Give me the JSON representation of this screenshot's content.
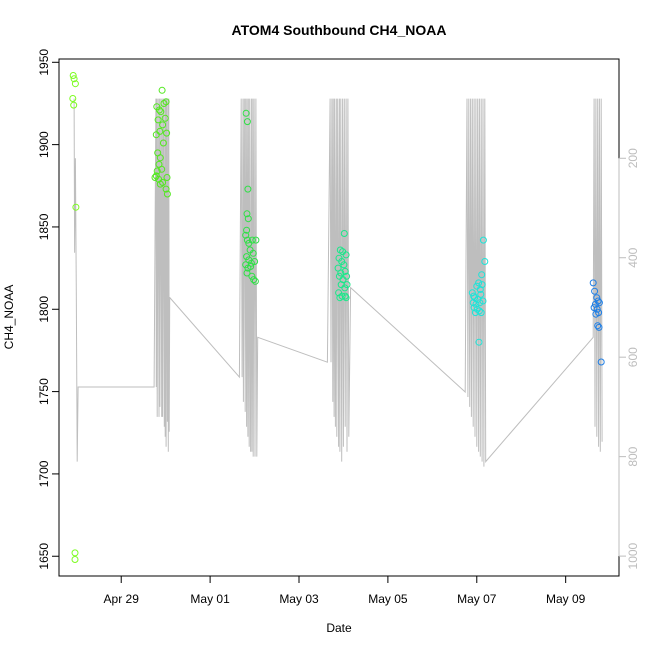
{
  "chart_data": {
    "type": "scatter",
    "title": "ATOM4 Southbound CH4_NOAA",
    "xlabel": "Date",
    "ylabel": "CH4_NOAA",
    "x_ticks": [
      "Apr 29",
      "May 01",
      "May 03",
      "May 05",
      "May 07",
      "May 09"
    ],
    "x_tick_days": [
      0.0,
      2.0,
      4.0,
      6.0,
      8.0,
      10.0
    ],
    "xlim_days": [
      -1.4,
      11.2
    ],
    "ylim": [
      1638,
      1952
    ],
    "y_ticks": [
      1650,
      1700,
      1750,
      1800,
      1850,
      1900,
      1950
    ],
    "y2_ticks": [
      200,
      400,
      600,
      800,
      1000
    ],
    "y2_range": [
      0.4,
      1040
    ],
    "colors": {
      "altitude_line": "#bebebe",
      "axis": "#000000",
      "right_axis": "#bdbdbd"
    },
    "series": [
      {
        "type": "scatter",
        "points": [
          {
            "x": -1.08,
            "y": 1942,
            "c": "#7cfc20"
          },
          {
            "x": -1.06,
            "y": 1940,
            "c": "#7cfc20"
          },
          {
            "x": -1.03,
            "y": 1937,
            "c": "#7cfc20"
          },
          {
            "x": -1.09,
            "y": 1928,
            "c": "#7cfc20"
          },
          {
            "x": -1.07,
            "y": 1924,
            "c": "#7cfc20"
          },
          {
            "x": -1.02,
            "y": 1862,
            "c": "#7cfc20"
          },
          {
            "x": -1.04,
            "y": 1652,
            "c": "#7cfc20"
          },
          {
            "x": -1.04,
            "y": 1648,
            "c": "#7cfc20"
          },
          {
            "x": 0.8,
            "y": 1923,
            "c": "#52e81f"
          },
          {
            "x": 0.86,
            "y": 1921,
            "c": "#52e81f"
          },
          {
            "x": 0.92,
            "y": 1933,
            "c": "#52e81f"
          },
          {
            "x": 0.96,
            "y": 1925,
            "c": "#52e81f"
          },
          {
            "x": 1.01,
            "y": 1926,
            "c": "#52e81f"
          },
          {
            "x": 0.83,
            "y": 1915,
            "c": "#52e81f"
          },
          {
            "x": 0.89,
            "y": 1920,
            "c": "#52e81f"
          },
          {
            "x": 0.93,
            "y": 1912,
            "c": "#52e81f"
          },
          {
            "x": 0.99,
            "y": 1916,
            "c": "#52e81f"
          },
          {
            "x": 0.79,
            "y": 1906,
            "c": "#52e81f"
          },
          {
            "x": 0.87,
            "y": 1908,
            "c": "#52e81f"
          },
          {
            "x": 0.95,
            "y": 1901,
            "c": "#52e81f"
          },
          {
            "x": 1.02,
            "y": 1907,
            "c": "#52e81f"
          },
          {
            "x": 0.82,
            "y": 1895,
            "c": "#52e81f"
          },
          {
            "x": 0.88,
            "y": 1892,
            "c": "#52e81f"
          },
          {
            "x": 0.85,
            "y": 1888,
            "c": "#52e81f"
          },
          {
            "x": 0.91,
            "y": 1885,
            "c": "#52e81f"
          },
          {
            "x": 0.79,
            "y": 1881,
            "c": "#52e81f"
          },
          {
            "x": 0.84,
            "y": 1879,
            "c": "#52e81f"
          },
          {
            "x": 0.88,
            "y": 1876,
            "c": "#52e81f"
          },
          {
            "x": 0.93,
            "y": 1877,
            "c": "#52e81f"
          },
          {
            "x": 1.03,
            "y": 1880,
            "c": "#52e81f"
          },
          {
            "x": 1.01,
            "y": 1873,
            "c": "#52e81f"
          },
          {
            "x": 1.04,
            "y": 1870,
            "c": "#52e81f"
          },
          {
            "x": 0.76,
            "y": 1880,
            "c": "#52e81f"
          },
          {
            "x": 0.81,
            "y": 1884,
            "c": "#52e81f"
          },
          {
            "x": 2.81,
            "y": 1919,
            "c": "#2fe046"
          },
          {
            "x": 2.84,
            "y": 1914,
            "c": "#2fe046"
          },
          {
            "x": 2.85,
            "y": 1873,
            "c": "#2fe046"
          },
          {
            "x": 2.83,
            "y": 1858,
            "c": "#2fe046"
          },
          {
            "x": 2.86,
            "y": 1855,
            "c": "#2fe046"
          },
          {
            "x": 2.82,
            "y": 1848,
            "c": "#2fe046"
          },
          {
            "x": 2.8,
            "y": 1845,
            "c": "#2fe046"
          },
          {
            "x": 2.84,
            "y": 1842,
            "c": "#2fe046"
          },
          {
            "x": 2.87,
            "y": 1840,
            "c": "#2fe046"
          },
          {
            "x": 2.95,
            "y": 1842,
            "c": "#2fe046"
          },
          {
            "x": 3.03,
            "y": 1842,
            "c": "#2fe046"
          },
          {
            "x": 2.9,
            "y": 1836,
            "c": "#2fe046"
          },
          {
            "x": 2.97,
            "y": 1834,
            "c": "#2fe046"
          },
          {
            "x": 2.82,
            "y": 1832,
            "c": "#2fe046"
          },
          {
            "x": 2.87,
            "y": 1830,
            "c": "#2fe046"
          },
          {
            "x": 2.93,
            "y": 1828,
            "c": "#2fe046"
          },
          {
            "x": 3.0,
            "y": 1829,
            "c": "#2fe046"
          },
          {
            "x": 2.8,
            "y": 1827,
            "c": "#2fe046"
          },
          {
            "x": 2.85,
            "y": 1825,
            "c": "#2fe046"
          },
          {
            "x": 2.91,
            "y": 1826,
            "c": "#2fe046"
          },
          {
            "x": 2.83,
            "y": 1822,
            "c": "#2fe046"
          },
          {
            "x": 2.94,
            "y": 1820,
            "c": "#2fe046"
          },
          {
            "x": 2.98,
            "y": 1818,
            "c": "#2fe046"
          },
          {
            "x": 3.02,
            "y": 1817,
            "c": "#2fe046"
          },
          {
            "x": 4.93,
            "y": 1836,
            "c": "#1ae88a"
          },
          {
            "x": 4.98,
            "y": 1835,
            "c": "#1ae88a"
          },
          {
            "x": 5.02,
            "y": 1846,
            "c": "#1ae88a"
          },
          {
            "x": 5.06,
            "y": 1833,
            "c": "#1ae88a"
          },
          {
            "x": 4.9,
            "y": 1831,
            "c": "#1ae88a"
          },
          {
            "x": 4.96,
            "y": 1829,
            "c": "#1ae88a"
          },
          {
            "x": 5.01,
            "y": 1827,
            "c": "#1ae88a"
          },
          {
            "x": 4.88,
            "y": 1825,
            "c": "#1ae88a"
          },
          {
            "x": 4.94,
            "y": 1822,
            "c": "#1ae88a"
          },
          {
            "x": 5.04,
            "y": 1823,
            "c": "#1ae88a"
          },
          {
            "x": 4.91,
            "y": 1820,
            "c": "#1ae88a"
          },
          {
            "x": 4.99,
            "y": 1818,
            "c": "#1ae88a"
          },
          {
            "x": 5.07,
            "y": 1820,
            "c": "#1ae88a"
          },
          {
            "x": 4.95,
            "y": 1815,
            "c": "#1ae88a"
          },
          {
            "x": 5.03,
            "y": 1813,
            "c": "#1ae88a"
          },
          {
            "x": 5.08,
            "y": 1815,
            "c": "#1ae88a"
          },
          {
            "x": 4.89,
            "y": 1810,
            "c": "#1ae88a"
          },
          {
            "x": 4.97,
            "y": 1808,
            "c": "#1ae88a"
          },
          {
            "x": 5.04,
            "y": 1808,
            "c": "#1ae88a"
          },
          {
            "x": 4.92,
            "y": 1807,
            "c": "#1ae88a"
          },
          {
            "x": 5.06,
            "y": 1807,
            "c": "#1ae88a"
          },
          {
            "x": 7.9,
            "y": 1810,
            "c": "#1ee4d8"
          },
          {
            "x": 7.95,
            "y": 1807,
            "c": "#1ee4d8"
          },
          {
            "x": 8.0,
            "y": 1814,
            "c": "#1ee4d8"
          },
          {
            "x": 8.04,
            "y": 1816,
            "c": "#1ee4d8"
          },
          {
            "x": 8.08,
            "y": 1812,
            "c": "#1ee4d8"
          },
          {
            "x": 8.12,
            "y": 1815,
            "c": "#1ee4d8"
          },
          {
            "x": 8.18,
            "y": 1829,
            "c": "#1ee4d8"
          },
          {
            "x": 8.15,
            "y": 1842,
            "c": "#1ee4d8"
          },
          {
            "x": 8.11,
            "y": 1821,
            "c": "#1ee4d8"
          },
          {
            "x": 7.92,
            "y": 1804,
            "c": "#1ee4d8"
          },
          {
            "x": 7.98,
            "y": 1803,
            "c": "#1ee4d8"
          },
          {
            "x": 8.02,
            "y": 1806,
            "c": "#1ee4d8"
          },
          {
            "x": 8.07,
            "y": 1804,
            "c": "#1ee4d8"
          },
          {
            "x": 8.14,
            "y": 1805,
            "c": "#1ee4d8"
          },
          {
            "x": 7.94,
            "y": 1801,
            "c": "#1ee4d8"
          },
          {
            "x": 8.01,
            "y": 1800,
            "c": "#1ee4d8"
          },
          {
            "x": 8.06,
            "y": 1799,
            "c": "#1ee4d8"
          },
          {
            "x": 7.97,
            "y": 1798,
            "c": "#1ee4d8"
          },
          {
            "x": 8.1,
            "y": 1798,
            "c": "#1ee4d8"
          },
          {
            "x": 8.05,
            "y": 1780,
            "c": "#1ee4d8"
          },
          {
            "x": 7.93,
            "y": 1808,
            "c": "#1ee4d8"
          },
          {
            "x": 8.09,
            "y": 1809,
            "c": "#1ee4d8"
          },
          {
            "x": 10.62,
            "y": 1816,
            "c": "#1f7fe6"
          },
          {
            "x": 10.65,
            "y": 1811,
            "c": "#1f7fe6"
          },
          {
            "x": 10.7,
            "y": 1807,
            "c": "#1f7fe6"
          },
          {
            "x": 10.73,
            "y": 1805,
            "c": "#1f7fe6"
          },
          {
            "x": 10.67,
            "y": 1803,
            "c": "#1f7fe6"
          },
          {
            "x": 10.76,
            "y": 1804,
            "c": "#1f7fe6"
          },
          {
            "x": 10.64,
            "y": 1801,
            "c": "#1f7fe6"
          },
          {
            "x": 10.71,
            "y": 1800,
            "c": "#1f7fe6"
          },
          {
            "x": 10.74,
            "y": 1798,
            "c": "#1f7fe6"
          },
          {
            "x": 10.68,
            "y": 1797,
            "c": "#1f7fe6"
          },
          {
            "x": 10.72,
            "y": 1790,
            "c": "#1f7fe6"
          },
          {
            "x": 10.75,
            "y": 1789,
            "c": "#1f7fe6"
          },
          {
            "x": 10.8,
            "y": 1768,
            "c": "#1f7fe6"
          }
        ]
      },
      {
        "type": "line",
        "axis": "right",
        "color": "#bebebe",
        "points": [
          [
            -1.06,
            80
          ],
          [
            -1.05,
            390
          ],
          [
            -1.03,
            200
          ],
          [
            -1.01,
            470
          ],
          [
            -0.99,
            810
          ],
          [
            -0.97,
            660
          ],
          [
            0.74,
            660
          ],
          [
            0.78,
            80
          ],
          [
            0.79,
            660
          ],
          [
            0.8,
            80
          ],
          [
            0.81,
            720
          ],
          [
            0.83,
            80
          ],
          [
            0.85,
            720
          ],
          [
            0.86,
            80
          ],
          [
            0.87,
            700
          ],
          [
            0.89,
            80
          ],
          [
            0.91,
            720
          ],
          [
            0.92,
            80
          ],
          [
            0.93,
            720
          ],
          [
            0.95,
            80
          ],
          [
            0.97,
            740
          ],
          [
            0.98,
            80
          ],
          [
            0.99,
            760
          ],
          [
            1.0,
            80
          ],
          [
            1.01,
            780
          ],
          [
            1.02,
            80
          ],
          [
            1.04,
            730
          ],
          [
            1.05,
            80
          ],
          [
            1.06,
            790
          ],
          [
            1.07,
            80
          ],
          [
            1.08,
            750
          ],
          [
            1.09,
            480
          ],
          [
            2.66,
            640
          ],
          [
            2.7,
            80
          ],
          [
            2.72,
            640
          ],
          [
            2.74,
            80
          ],
          [
            2.75,
            690
          ],
          [
            2.77,
            80
          ],
          [
            2.79,
            710
          ],
          [
            2.8,
            80
          ],
          [
            2.82,
            740
          ],
          [
            2.83,
            80
          ],
          [
            2.85,
            760
          ],
          [
            2.86,
            80
          ],
          [
            2.88,
            780
          ],
          [
            2.89,
            80
          ],
          [
            2.91,
            790
          ],
          [
            2.93,
            80
          ],
          [
            2.94,
            790
          ],
          [
            2.96,
            80
          ],
          [
            2.97,
            800
          ],
          [
            2.99,
            80
          ],
          [
            3.01,
            800
          ],
          [
            3.03,
            80
          ],
          [
            3.05,
            800
          ],
          [
            3.07,
            560
          ],
          [
            4.64,
            610
          ],
          [
            4.7,
            80
          ],
          [
            4.72,
            610
          ],
          [
            4.74,
            80
          ],
          [
            4.76,
            690
          ],
          [
            4.77,
            80
          ],
          [
            4.79,
            720
          ],
          [
            4.8,
            80
          ],
          [
            4.82,
            740
          ],
          [
            4.84,
            80
          ],
          [
            4.85,
            760
          ],
          [
            4.87,
            80
          ],
          [
            4.89,
            780
          ],
          [
            4.91,
            80
          ],
          [
            4.92,
            790
          ],
          [
            4.94,
            80
          ],
          [
            4.96,
            810
          ],
          [
            4.98,
            80
          ],
          [
            5.0,
            780
          ],
          [
            5.02,
            80
          ],
          [
            5.04,
            740
          ],
          [
            5.06,
            80
          ],
          [
            5.08,
            790
          ],
          [
            5.1,
            80
          ],
          [
            5.12,
            760
          ],
          [
            5.16,
            460
          ],
          [
            7.74,
            670
          ],
          [
            7.78,
            80
          ],
          [
            7.8,
            680
          ],
          [
            7.82,
            80
          ],
          [
            7.84,
            700
          ],
          [
            7.86,
            80
          ],
          [
            7.88,
            720
          ],
          [
            7.9,
            80
          ],
          [
            7.92,
            740
          ],
          [
            7.94,
            80
          ],
          [
            7.96,
            760
          ],
          [
            7.98,
            80
          ],
          [
            8.0,
            780
          ],
          [
            8.02,
            80
          ],
          [
            8.04,
            790
          ],
          [
            8.06,
            80
          ],
          [
            8.08,
            800
          ],
          [
            8.1,
            80
          ],
          [
            8.12,
            810
          ],
          [
            8.14,
            80
          ],
          [
            8.16,
            820
          ],
          [
            8.18,
            80
          ],
          [
            8.2,
            810
          ],
          [
            10.62,
            560
          ],
          [
            10.64,
            80
          ],
          [
            10.66,
            740
          ],
          [
            10.68,
            80
          ],
          [
            10.7,
            760
          ],
          [
            10.72,
            80
          ],
          [
            10.74,
            780
          ],
          [
            10.76,
            80
          ],
          [
            10.78,
            790
          ],
          [
            10.8,
            80
          ],
          [
            10.82,
            770
          ]
        ]
      }
    ]
  }
}
